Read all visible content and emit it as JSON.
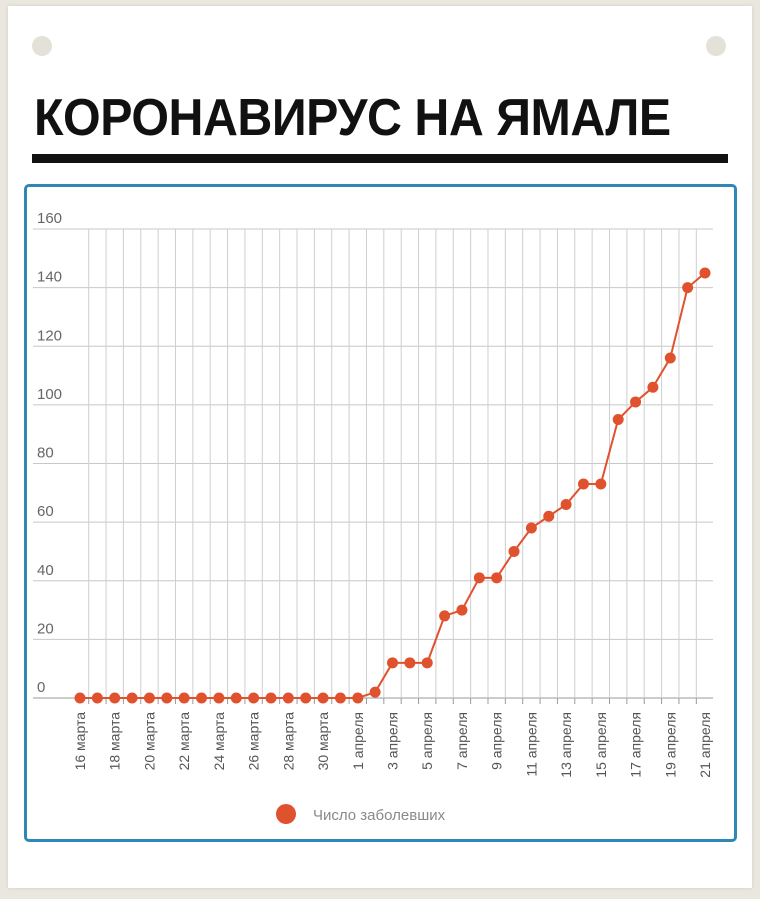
{
  "page": {
    "title": "КОРОНАВИРУС НА ЯМАЛЕ"
  },
  "chart_data": {
    "type": "line",
    "title": "",
    "xlabel": "",
    "ylabel": "",
    "ylim": [
      0,
      160
    ],
    "yticks": [
      0,
      20,
      40,
      60,
      80,
      100,
      120,
      140,
      160
    ],
    "grid": true,
    "legend_position": "bottom-center",
    "x": [
      "16 марта",
      "17 марта",
      "18 марта",
      "19 марта",
      "20 марта",
      "21 марта",
      "22 марта",
      "23 марта",
      "24 марта",
      "25 марта",
      "26 марта",
      "27 марта",
      "28 марта",
      "29 марта",
      "30 марта",
      "31 марта",
      "1 апреля",
      "2 апреля",
      "3 апреля",
      "4 апреля",
      "5 апреля",
      "6 апреля",
      "7 апреля",
      "8 апреля",
      "9 апреля",
      "10 апреля",
      "11 апреля",
      "12 апреля",
      "13 апреля",
      "14 апреля",
      "15 апреля",
      "16 апреля",
      "17 апреля",
      "18 апреля",
      "19 апреля",
      "20 апреля",
      "21 апреля"
    ],
    "x_tick_labels": [
      "16 марта",
      "",
      "18 марта",
      "",
      "20 марта",
      "",
      "22 марта",
      "",
      "24 марта",
      "",
      "26 марта",
      "",
      "28 марта",
      "",
      "30 марта",
      "",
      "1 апреля",
      "",
      "3 апреля",
      "",
      "5 апреля",
      "",
      "7 апреля",
      "",
      "9 апреля",
      "",
      "11 апреля",
      "",
      "13 апреля",
      "",
      "15 апреля",
      "",
      "17 апреля",
      "",
      "19 апреля",
      "",
      "21 апреля"
    ],
    "series": [
      {
        "name": "Число заболевших",
        "color": "#e0522e",
        "values": [
          0,
          0,
          0,
          0,
          0,
          0,
          0,
          0,
          0,
          0,
          0,
          0,
          0,
          0,
          0,
          0,
          0,
          2,
          12,
          12,
          12,
          28,
          30,
          41,
          41,
          50,
          58,
          62,
          66,
          73,
          73,
          95,
          101,
          106,
          116,
          140,
          145
        ]
      }
    ]
  }
}
